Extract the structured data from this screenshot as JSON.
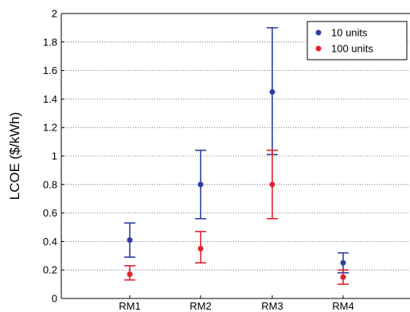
{
  "chart_data": {
    "type": "scatter",
    "title": "",
    "xlabel": "",
    "ylabel": "LCOE  ($/kWh)",
    "categories": [
      "RM1",
      "RM2",
      "RM3",
      "RM4"
    ],
    "ylim": [
      0,
      2
    ],
    "yticks": [
      "0",
      "0.2",
      "0.4",
      "0.6",
      "0.8",
      "1",
      "1.2",
      "1.4",
      "1.6",
      "1.8",
      "2"
    ],
    "grid": "horizontal dotted",
    "legend_position": "top-right",
    "series": [
      {
        "name": "10 units",
        "color": "#2e3f9e",
        "values": [
          0.41,
          0.8,
          1.45,
          0.25
        ],
        "lower": [
          0.29,
          0.56,
          1.01,
          0.18
        ],
        "upper": [
          0.53,
          1.04,
          1.9,
          0.32
        ]
      },
      {
        "name": "100 units",
        "color": "#e0242b",
        "values": [
          0.17,
          0.35,
          0.8,
          0.15
        ],
        "lower": [
          0.13,
          0.25,
          0.56,
          0.1
        ],
        "upper": [
          0.23,
          0.47,
          1.04,
          0.2
        ]
      }
    ]
  }
}
